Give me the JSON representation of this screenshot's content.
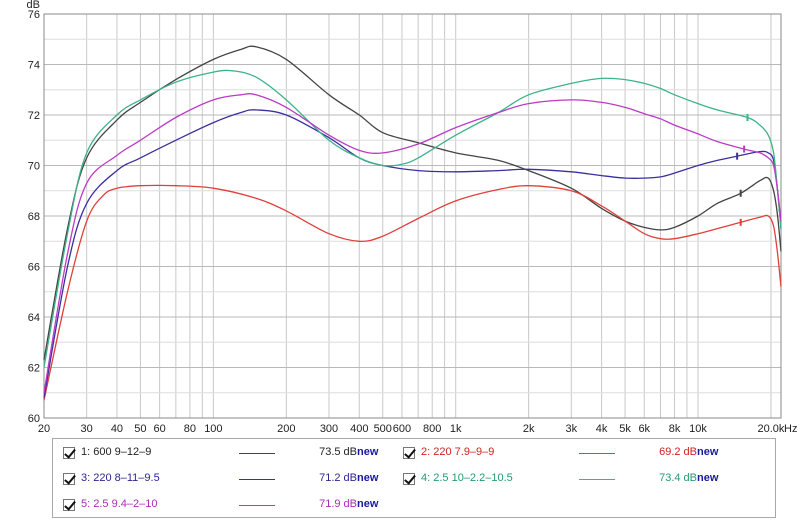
{
  "chart_data": {
    "type": "line",
    "ylabel": "dB",
    "xlabel": "",
    "x_unit_label": "Hz",
    "ylim": [
      60,
      76
    ],
    "xlim": [
      20,
      22000
    ],
    "x_scale": "log",
    "grid": true,
    "y_ticks": [
      60,
      62,
      64,
      66,
      68,
      70,
      72,
      74,
      76
    ],
    "x_tick_labels": [
      {
        "v": 20,
        "t": "20"
      },
      {
        "v": 30,
        "t": "30"
      },
      {
        "v": 40,
        "t": "40"
      },
      {
        "v": 50,
        "t": "50"
      },
      {
        "v": 60,
        "t": "60"
      },
      {
        "v": 80,
        "t": "80"
      },
      {
        "v": 100,
        "t": "100"
      },
      {
        "v": 200,
        "t": "200"
      },
      {
        "v": 300,
        "t": "300"
      },
      {
        "v": 400,
        "t": "400"
      },
      {
        "v": 500,
        "t": "500"
      },
      {
        "v": 600,
        "t": "600"
      },
      {
        "v": 800,
        "t": "800"
      },
      {
        "v": 1000,
        "t": "1k"
      },
      {
        "v": 2000,
        "t": "2k"
      },
      {
        "v": 3000,
        "t": "3k"
      },
      {
        "v": 4000,
        "t": "4k"
      },
      {
        "v": 5000,
        "t": "5k"
      },
      {
        "v": 6000,
        "t": "6k"
      },
      {
        "v": 8000,
        "t": "8k"
      },
      {
        "v": 10000,
        "t": "10k"
      },
      {
        "v": 20000,
        "t": "20.0k"
      }
    ],
    "series": [
      {
        "name": "1: 600 9–12–9",
        "color": "#444444",
        "avg": "73.5 dB",
        "marker_x": 15000,
        "points": [
          [
            20,
            62.3
          ],
          [
            25,
            67.5
          ],
          [
            30,
            70.3
          ],
          [
            40,
            71.8
          ],
          [
            50,
            72.5
          ],
          [
            70,
            73.4
          ],
          [
            100,
            74.2
          ],
          [
            130,
            74.6
          ],
          [
            150,
            74.7
          ],
          [
            200,
            74.2
          ],
          [
            300,
            72.8
          ],
          [
            400,
            72.0
          ],
          [
            500,
            71.3
          ],
          [
            700,
            70.9
          ],
          [
            1000,
            70.5
          ],
          [
            1500,
            70.2
          ],
          [
            2000,
            69.8
          ],
          [
            3000,
            69.1
          ],
          [
            4000,
            68.3
          ],
          [
            5000,
            67.8
          ],
          [
            6000,
            67.55
          ],
          [
            7000,
            67.45
          ],
          [
            8000,
            67.55
          ],
          [
            10000,
            68.0
          ],
          [
            12000,
            68.5
          ],
          [
            15000,
            68.9
          ],
          [
            18000,
            69.4
          ],
          [
            19500,
            69.5
          ],
          [
            20500,
            69.0
          ],
          [
            21300,
            68.0
          ],
          [
            22000,
            66.6
          ]
        ]
      },
      {
        "name": "2: 220 7.9–9–9",
        "color": "#e0403a",
        "avg": "69.2 dB",
        "marker_x": 15000,
        "points": [
          [
            20,
            60.7
          ],
          [
            25,
            65.0
          ],
          [
            30,
            67.8
          ],
          [
            35,
            68.8
          ],
          [
            40,
            69.1
          ],
          [
            50,
            69.2
          ],
          [
            70,
            69.2
          ],
          [
            100,
            69.1
          ],
          [
            150,
            68.7
          ],
          [
            200,
            68.2
          ],
          [
            300,
            67.3
          ],
          [
            400,
            67.0
          ],
          [
            500,
            67.2
          ],
          [
            700,
            67.9
          ],
          [
            1000,
            68.6
          ],
          [
            1500,
            69.05
          ],
          [
            2000,
            69.2
          ],
          [
            3000,
            69.0
          ],
          [
            4000,
            68.4
          ],
          [
            5000,
            67.8
          ],
          [
            6000,
            67.3
          ],
          [
            7000,
            67.1
          ],
          [
            8000,
            67.1
          ],
          [
            10000,
            67.3
          ],
          [
            12000,
            67.5
          ],
          [
            15000,
            67.75
          ],
          [
            18000,
            67.95
          ],
          [
            19500,
            68.0
          ],
          [
            20500,
            67.6
          ],
          [
            21300,
            66.5
          ],
          [
            22000,
            65.2
          ]
        ]
      },
      {
        "name": "3: 220 8–11–9.5",
        "color": "#3b2fa0",
        "avg": "71.2 dB",
        "marker_x": 14500,
        "points": [
          [
            20,
            60.8
          ],
          [
            25,
            66.0
          ],
          [
            30,
            68.5
          ],
          [
            40,
            69.8
          ],
          [
            50,
            70.3
          ],
          [
            70,
            71.0
          ],
          [
            100,
            71.7
          ],
          [
            130,
            72.1
          ],
          [
            150,
            72.2
          ],
          [
            200,
            72.0
          ],
          [
            300,
            71.1
          ],
          [
            400,
            70.3
          ],
          [
            500,
            70.0
          ],
          [
            700,
            69.8
          ],
          [
            1000,
            69.75
          ],
          [
            1500,
            69.8
          ],
          [
            2000,
            69.85
          ],
          [
            3000,
            69.75
          ],
          [
            4000,
            69.6
          ],
          [
            5000,
            69.5
          ],
          [
            6000,
            69.5
          ],
          [
            7000,
            69.55
          ],
          [
            8000,
            69.7
          ],
          [
            10000,
            70.0
          ],
          [
            12000,
            70.2
          ],
          [
            15000,
            70.4
          ],
          [
            18000,
            70.55
          ],
          [
            19500,
            70.5
          ],
          [
            20500,
            70.2
          ],
          [
            21300,
            69.0
          ],
          [
            22000,
            67.5
          ]
        ]
      },
      {
        "name": "4: 2.5 10–2.2–10.5",
        "color": "#3db38a",
        "avg": "73.4 dB",
        "marker_x": 16000,
        "points": [
          [
            20,
            62.0
          ],
          [
            25,
            67.3
          ],
          [
            30,
            70.5
          ],
          [
            40,
            72.0
          ],
          [
            50,
            72.6
          ],
          [
            70,
            73.3
          ],
          [
            100,
            73.7
          ],
          [
            120,
            73.75
          ],
          [
            150,
            73.5
          ],
          [
            200,
            72.6
          ],
          [
            300,
            71.0
          ],
          [
            400,
            70.3
          ],
          [
            500,
            70.0
          ],
          [
            600,
            70.05
          ],
          [
            700,
            70.3
          ],
          [
            1000,
            71.2
          ],
          [
            1500,
            72.1
          ],
          [
            2000,
            72.8
          ],
          [
            3000,
            73.25
          ],
          [
            4000,
            73.45
          ],
          [
            5000,
            73.4
          ],
          [
            6000,
            73.25
          ],
          [
            7000,
            73.05
          ],
          [
            8000,
            72.8
          ],
          [
            10000,
            72.45
          ],
          [
            12000,
            72.2
          ],
          [
            16000,
            71.9
          ],
          [
            18000,
            71.6
          ],
          [
            19500,
            71.2
          ],
          [
            20500,
            70.5
          ],
          [
            21300,
            69.0
          ],
          [
            22000,
            67.5
          ]
        ]
      },
      {
        "name": "5: 2.5 9.4–2–10",
        "color": "#bb3bc6",
        "avg": "71.9 dB",
        "marker_x": 15500,
        "points": [
          [
            20,
            61.0
          ],
          [
            25,
            66.5
          ],
          [
            30,
            69.3
          ],
          [
            40,
            70.4
          ],
          [
            50,
            71.0
          ],
          [
            70,
            71.9
          ],
          [
            100,
            72.6
          ],
          [
            130,
            72.8
          ],
          [
            150,
            72.8
          ],
          [
            200,
            72.3
          ],
          [
            300,
            71.2
          ],
          [
            400,
            70.6
          ],
          [
            500,
            70.5
          ],
          [
            700,
            70.85
          ],
          [
            1000,
            71.5
          ],
          [
            1500,
            72.1
          ],
          [
            2000,
            72.45
          ],
          [
            3000,
            72.6
          ],
          [
            4000,
            72.5
          ],
          [
            5000,
            72.3
          ],
          [
            6000,
            72.05
          ],
          [
            7000,
            71.85
          ],
          [
            8000,
            71.6
          ],
          [
            10000,
            71.25
          ],
          [
            12000,
            70.95
          ],
          [
            15500,
            70.65
          ],
          [
            18000,
            70.5
          ],
          [
            19500,
            70.3
          ],
          [
            20500,
            70.0
          ],
          [
            21300,
            69.0
          ],
          [
            22000,
            67.8
          ]
        ]
      }
    ]
  },
  "legend": {
    "new_label": "new",
    "items": [
      {
        "label": "1: 600 9–12–9",
        "value": "73.5 dB",
        "color": "#444444",
        "text_color": "#222222"
      },
      {
        "label": "2: 220 7.9–9–9",
        "value": "69.2 dB",
        "color": "#e0403a",
        "text_color": "#d32020"
      },
      {
        "label": "3: 220 8–11–9.5",
        "value": "71.2 dB",
        "color": "#3b2fa0",
        "text_color": "#2e2590"
      },
      {
        "label": "4: 2.5 10–2.2–10.5",
        "value": "73.4 dB",
        "color": "#3db38a",
        "text_color": "#239a70"
      },
      {
        "label": "5: 2.5 9.4–2–10",
        "value": "71.9 dB",
        "color": "#bb3bc6",
        "text_color": "#a92cb3"
      }
    ]
  }
}
